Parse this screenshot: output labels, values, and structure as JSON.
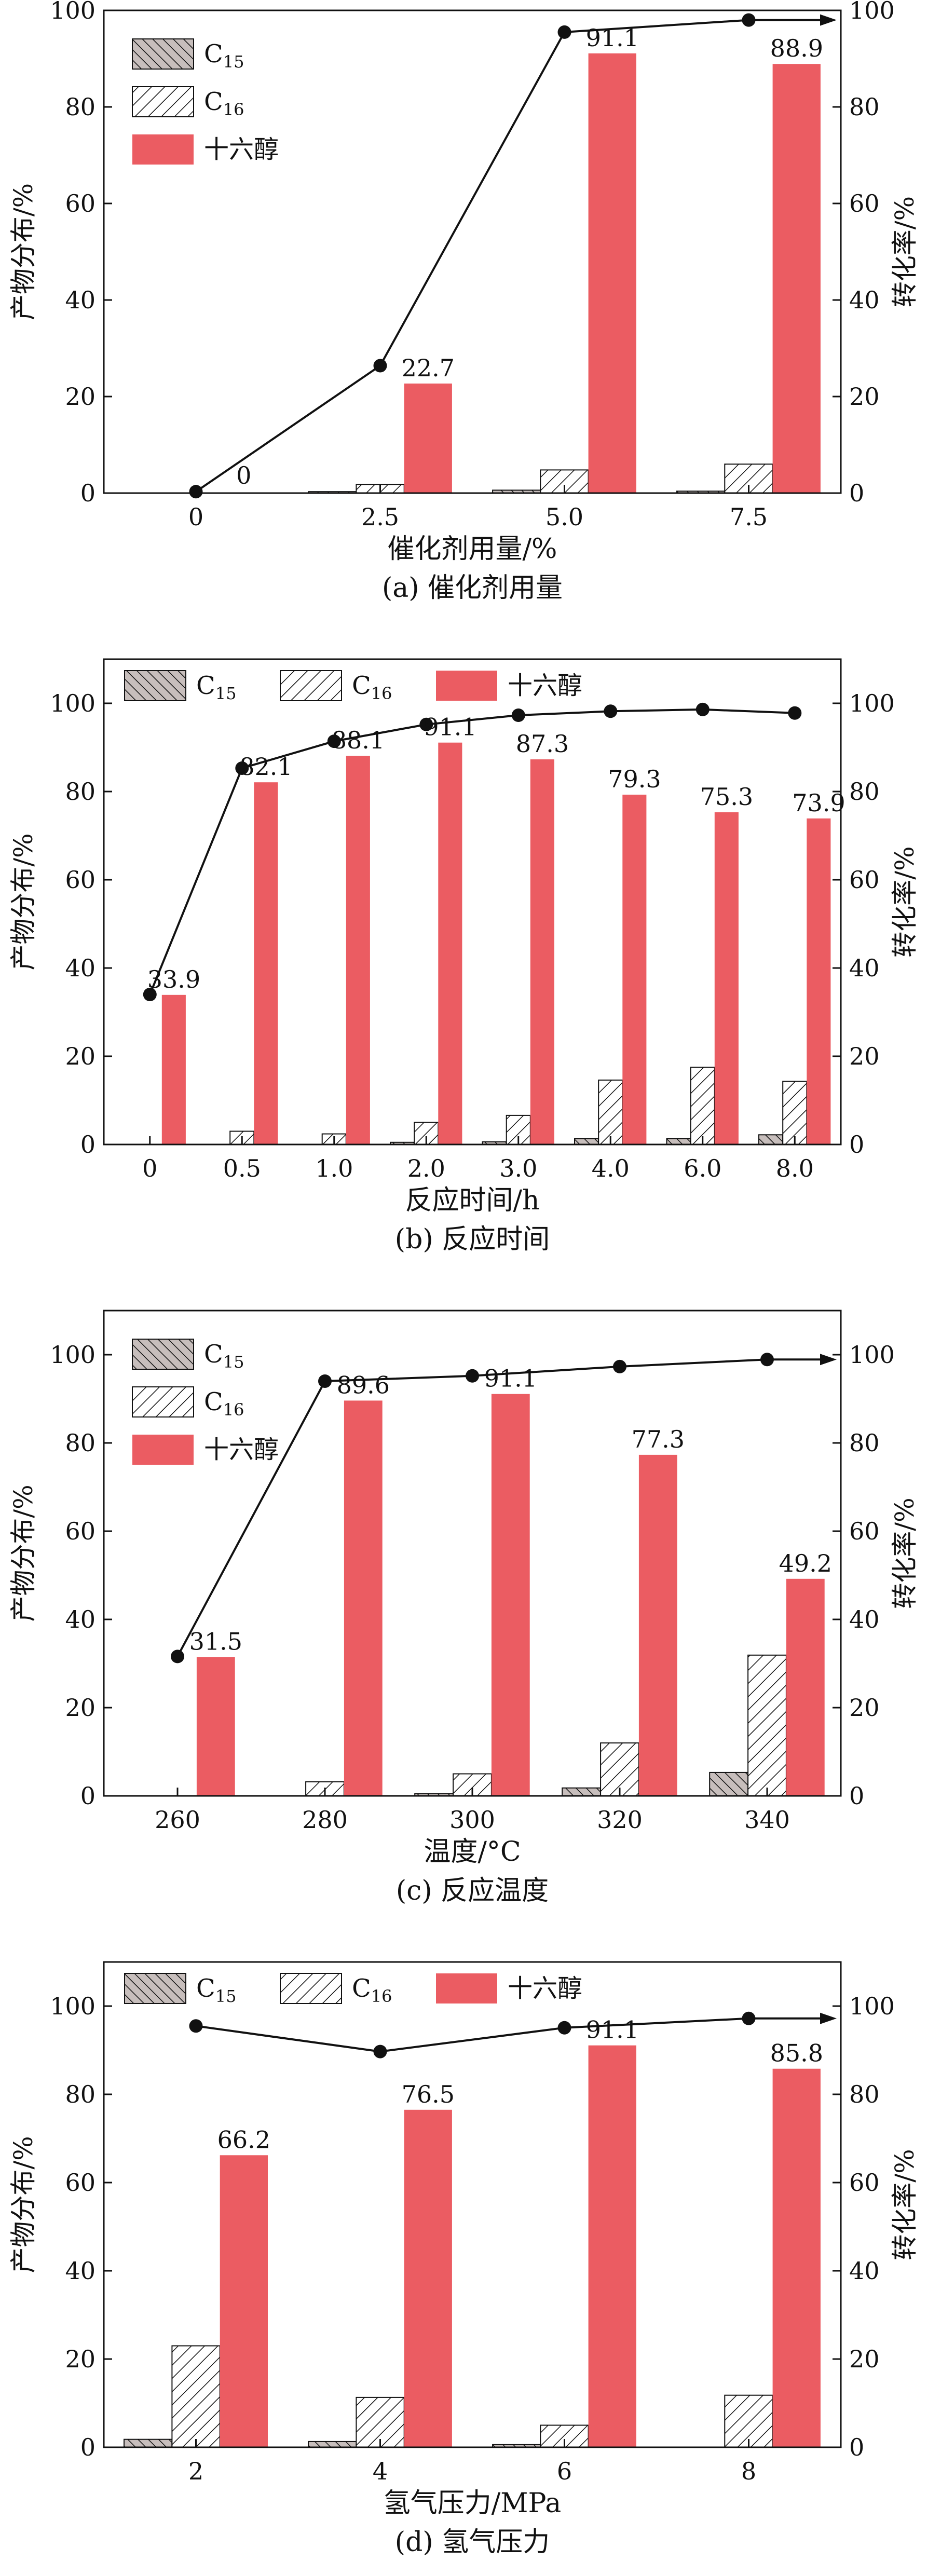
{
  "chart_data": [
    {
      "type": "bar",
      "caption": "(a) 催化剂用量",
      "xlabel": "催化剂用量/%",
      "ylabel": "产物分布/%",
      "y2label": "转化率/%",
      "ylim": [
        0,
        100
      ],
      "y2lim": [
        0,
        100
      ],
      "yticks": [
        "0",
        "20",
        "40",
        "60",
        "80",
        "100"
      ],
      "y2ticks": [
        "0",
        "20",
        "40",
        "60",
        "80",
        "100"
      ],
      "categories": [
        "0",
        "2.5",
        "5.0",
        "7.5"
      ],
      "series": [
        {
          "name": "C15",
          "values": [
            0,
            0.3,
            0.6,
            0.4
          ]
        },
        {
          "name": "C16",
          "values": [
            0,
            1.8,
            4.8,
            6.0
          ]
        },
        {
          "name": "十六醇",
          "values": [
            0,
            22.7,
            91.1,
            88.9
          ]
        }
      ],
      "bar_labels": [
        "0",
        "22.7",
        "91.1",
        "88.9"
      ],
      "conversion": [
        0.3,
        26.4,
        95.5,
        98.0
      ],
      "arrow": "right",
      "legend": {
        "placement": "top-left",
        "layout": "column"
      }
    },
    {
      "type": "bar",
      "caption": "(b) 反应时间",
      "xlabel": "反应时间/h",
      "ylabel": "产物分布/%",
      "y2label": "转化率/%",
      "ylim": [
        0,
        110
      ],
      "y2lim": [
        0,
        110
      ],
      "yticks": [
        "0",
        "20",
        "40",
        "60",
        "80",
        "100"
      ],
      "y2ticks": [
        "0",
        "20",
        "40",
        "60",
        "80",
        "100"
      ],
      "categories": [
        "0",
        "0.5",
        "1.0",
        "2.0",
        "3.0",
        "4.0",
        "6.0",
        "8.0"
      ],
      "series": [
        {
          "name": "C15",
          "values": [
            0,
            0,
            0,
            0.5,
            0.6,
            1.3,
            1.3,
            2.2
          ]
        },
        {
          "name": "C16",
          "values": [
            0,
            3.0,
            2.4,
            5.0,
            6.6,
            14.6,
            17.5,
            14.3
          ]
        },
        {
          "name": "十六醇",
          "values": [
            33.9,
            82.1,
            88.1,
            91.1,
            87.3,
            79.3,
            75.3,
            73.9
          ]
        }
      ],
      "bar_labels": [
        "33.9",
        "82.1",
        "88.1",
        "91.1",
        "87.3",
        "79.3",
        "75.3",
        "73.9"
      ],
      "conversion": [
        34.0,
        85.3,
        91.4,
        95.2,
        97.3,
        98.2,
        98.6,
        97.8
      ],
      "arrow": "none",
      "legend": {
        "placement": "top",
        "layout": "row"
      }
    },
    {
      "type": "bar",
      "caption": "(c) 反应温度",
      "xlabel": "温度/°C",
      "ylabel": "产物分布/%",
      "y2label": "转化率/%",
      "ylim": [
        0,
        110
      ],
      "y2lim": [
        0,
        110
      ],
      "yticks": [
        "0",
        "20",
        "40",
        "60",
        "80",
        "100"
      ],
      "y2ticks": [
        "0",
        "20",
        "40",
        "60",
        "80",
        "100"
      ],
      "categories": [
        "260",
        "280",
        "300",
        "320",
        "340"
      ],
      "series": [
        {
          "name": "C15",
          "values": [
            0,
            0,
            0.5,
            1.8,
            5.3
          ]
        },
        {
          "name": "C16",
          "values": [
            0,
            3.2,
            5.0,
            12.0,
            31.9
          ]
        },
        {
          "name": "十六醇",
          "values": [
            31.5,
            89.6,
            91.1,
            77.3,
            49.2
          ]
        }
      ],
      "bar_labels": [
        "31.5",
        "89.6",
        "91.1",
        "77.3",
        "49.2"
      ],
      "conversion": [
        31.6,
        94.0,
        95.2,
        97.3,
        98.9
      ],
      "arrow": "right",
      "legend": {
        "placement": "top-left",
        "layout": "column"
      }
    },
    {
      "type": "bar",
      "caption": "(d) 氢气压力",
      "xlabel": "氢气压力/MPa",
      "ylabel": "产物分布/%",
      "y2label": "转化率/%",
      "ylim": [
        0,
        110
      ],
      "y2lim": [
        0,
        110
      ],
      "yticks": [
        "0",
        "20",
        "40",
        "60",
        "80",
        "100"
      ],
      "y2ticks": [
        "0",
        "20",
        "40",
        "60",
        "80",
        "100"
      ],
      "categories": [
        "2",
        "4",
        "6",
        "8"
      ],
      "series": [
        {
          "name": "C15",
          "values": [
            1.8,
            1.3,
            0.6,
            0
          ]
        },
        {
          "name": "C16",
          "values": [
            23.0,
            11.3,
            5.0,
            11.8
          ]
        },
        {
          "name": "十六醇",
          "values": [
            66.2,
            76.5,
            91.1,
            85.8
          ]
        }
      ],
      "bar_labels": [
        "66.2",
        "76.5",
        "91.1",
        "85.8"
      ],
      "conversion": [
        95.5,
        89.7,
        95.1,
        97.2
      ],
      "arrow": "right",
      "legend": {
        "placement": "top",
        "layout": "row"
      }
    }
  ],
  "colors": {
    "alcohol": "#eb5c62",
    "c15": "#c7bebc",
    "c16": "#ffffff",
    "line": "#111111",
    "axis": "#111111"
  }
}
